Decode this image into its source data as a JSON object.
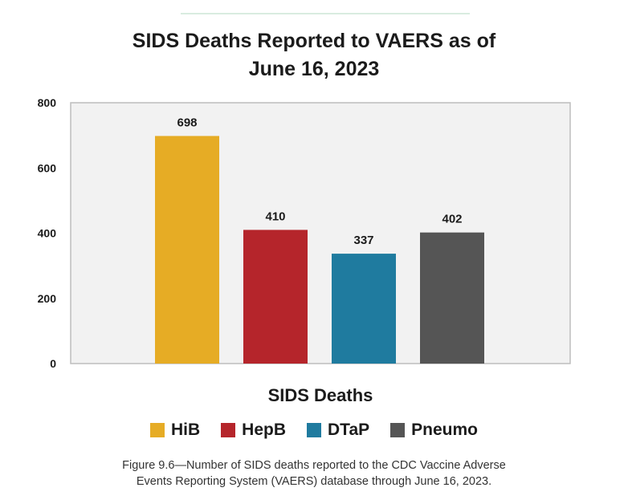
{
  "chart_data": {
    "type": "bar",
    "title_lines": [
      "SIDS Deaths Reported to VAERS as of",
      "June 16, 2023"
    ],
    "xlabel": "SIDS Deaths",
    "ylabel": "",
    "ylim": [
      0,
      800
    ],
    "yticks": [
      0,
      200,
      400,
      600,
      800
    ],
    "grid": false,
    "legend_position": "bottom",
    "series": [
      {
        "name": "HiB",
        "value": 698,
        "color": "#e6ac25"
      },
      {
        "name": "HepB",
        "value": 410,
        "color": "#b5252b"
      },
      {
        "name": "DTaP",
        "value": 337,
        "color": "#1f7b9f"
      },
      {
        "name": "Pneumo",
        "value": 402,
        "color": "#555555"
      }
    ]
  },
  "caption_lines": [
    "Figure 9.6—Number of SIDS deaths reported to the CDC Vaccine Adverse",
    "Events Reporting System (VAERS) database through June 16, 2023."
  ]
}
